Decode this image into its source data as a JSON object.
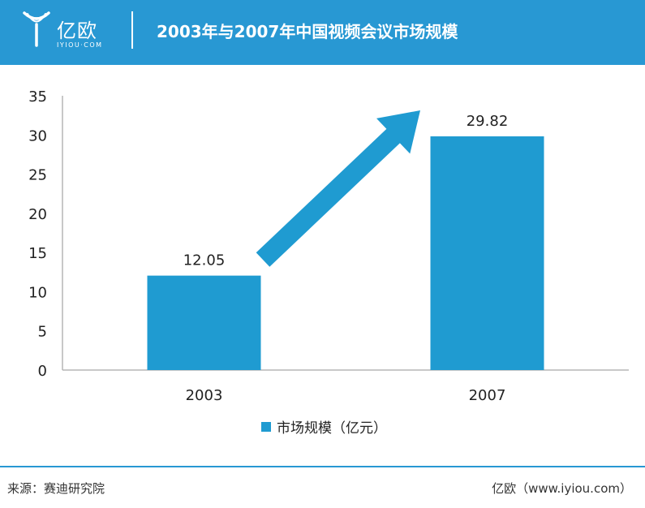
{
  "header": {
    "logo_text": "亿欧",
    "logo_sub": "IYIOU·COM",
    "title": "2003年与2007年中国视频会议市场规模",
    "background_color": "#2898d3"
  },
  "chart_data": {
    "type": "bar",
    "categories": [
      "2003",
      "2007"
    ],
    "values": [
      12.05,
      29.82
    ],
    "data_labels": [
      "12.05",
      "29.82"
    ],
    "series": [
      {
        "name": "市场规模（亿元）",
        "values": [
          12.05,
          29.82
        ],
        "color": "#1f9bd1"
      }
    ],
    "yticks": [
      "0",
      "5",
      "10",
      "15",
      "20",
      "25",
      "30",
      "35"
    ],
    "ylim": [
      0,
      35
    ],
    "xlabel": "",
    "ylabel": "",
    "grid": false,
    "legend_position": "bottom",
    "annotation": "upward arrow from 2003 bar to 2007 bar",
    "arrow_color": "#1f9bd1"
  },
  "legend": {
    "label": "市场规模（亿元）"
  },
  "footer": {
    "source": "来源：赛迪研究院",
    "site": "亿欧（www.iyiou.com）"
  }
}
